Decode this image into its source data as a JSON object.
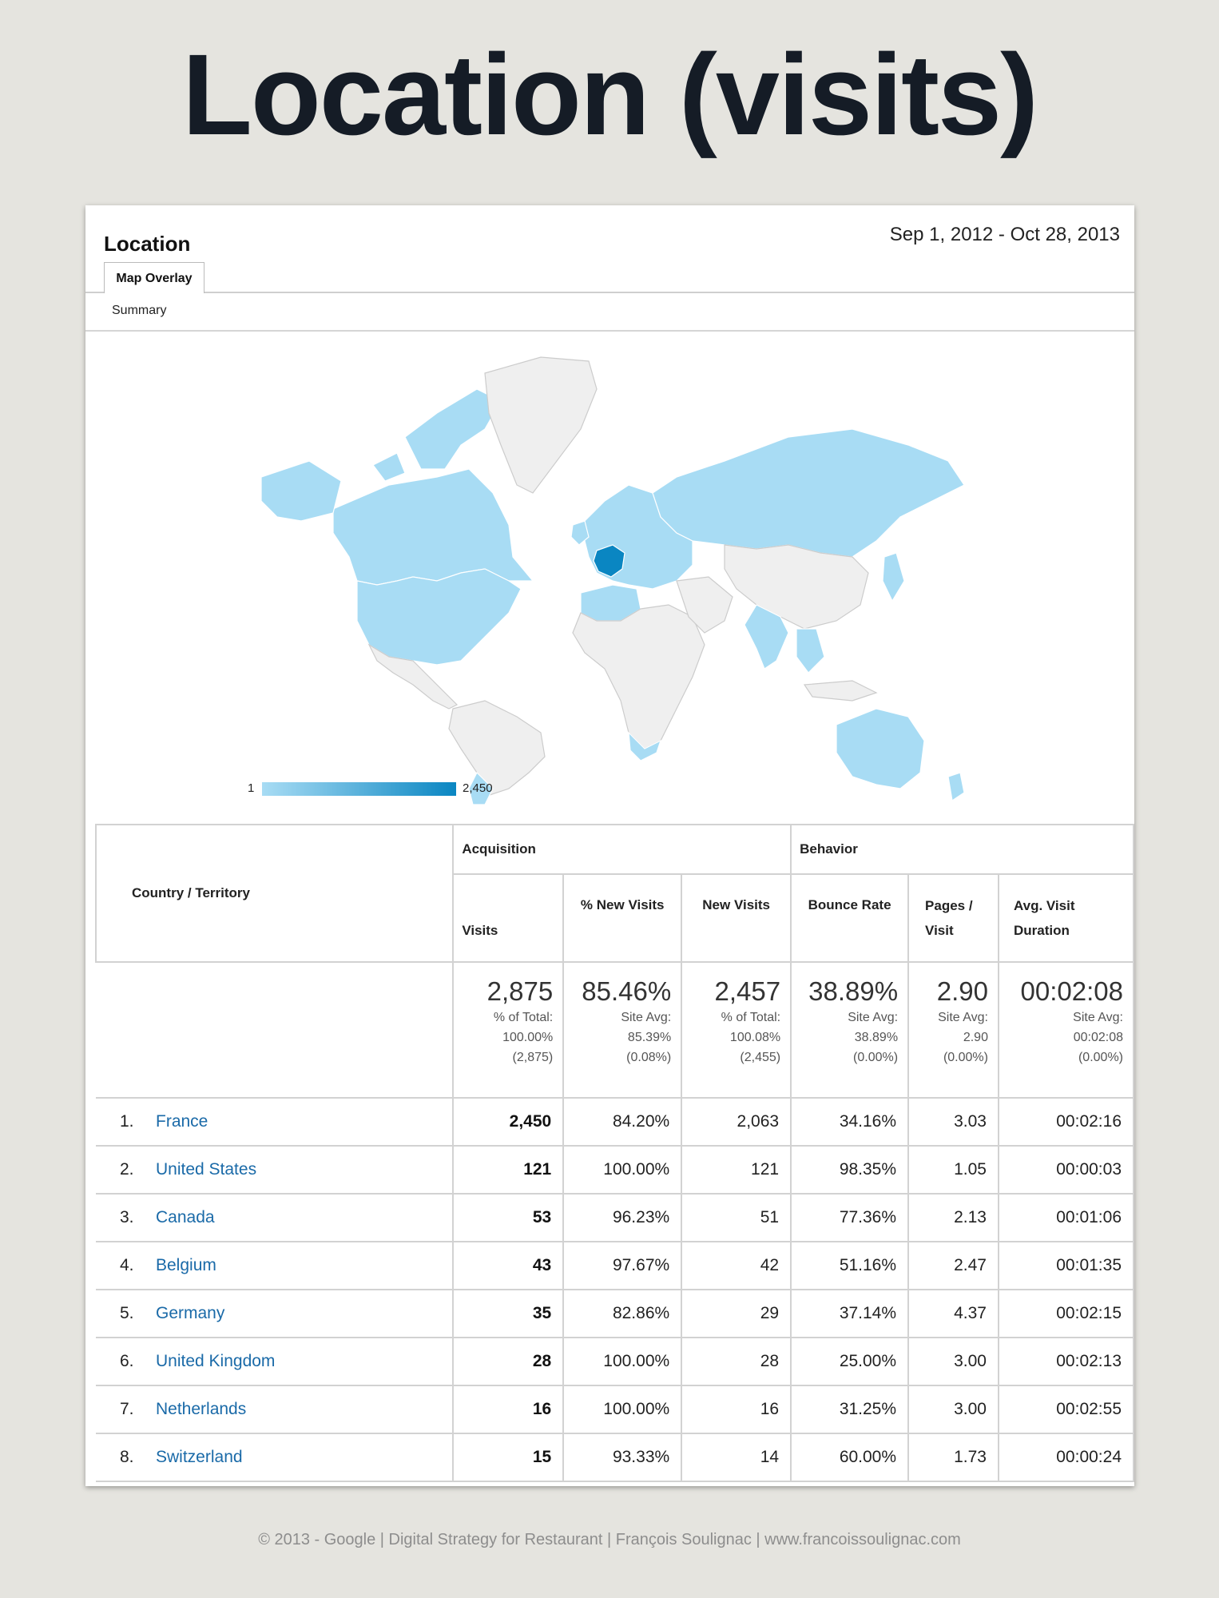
{
  "slide_title": "Location (visits)",
  "panel": {
    "title": "Location",
    "date_range": "Sep 1, 2012 - Oct 28, 2013",
    "tabs": [
      "Map Overlay"
    ],
    "summary_link": "Summary"
  },
  "map": {
    "legend_min": "1",
    "legend_max": "2,450",
    "colors": {
      "highlight": "#0a86c2",
      "visited": "#a8dcf4",
      "none": "#efefef",
      "border": "#ffffff"
    }
  },
  "table": {
    "country_header": "Country / Territory",
    "groups": {
      "acquisition": "Acquisition",
      "behavior": "Behavior"
    },
    "columns": [
      "Visits",
      "% New Visits",
      "New Visits",
      "Bounce Rate",
      "Pages / Visit",
      "Avg. Visit Duration"
    ],
    "totals": [
      {
        "value": "2,875",
        "l1": "% of Total:",
        "l2": "100.00%",
        "l3": "(2,875)"
      },
      {
        "value": "85.46%",
        "l1": "Site Avg:",
        "l2": "85.39%",
        "l3": "(0.08%)"
      },
      {
        "value": "2,457",
        "l1": "% of Total:",
        "l2": "100.08%",
        "l3": "(2,455)"
      },
      {
        "value": "38.89%",
        "l1": "Site Avg:",
        "l2": "38.89%",
        "l3": "(0.00%)"
      },
      {
        "value": "2.90",
        "l1": "Site Avg:",
        "l2": "2.90",
        "l3": "(0.00%)"
      },
      {
        "value": "00:02:08",
        "l1": "Site Avg:",
        "l2": "00:02:08",
        "l3": "(0.00%)"
      }
    ],
    "rows": [
      {
        "idx": "1.",
        "country": "France",
        "visits": "2,450",
        "new_pct": "84.20%",
        "new": "2,063",
        "bounce": "34.16%",
        "pages": "3.03",
        "duration": "00:02:16"
      },
      {
        "idx": "2.",
        "country": "United States",
        "visits": "121",
        "new_pct": "100.00%",
        "new": "121",
        "bounce": "98.35%",
        "pages": "1.05",
        "duration": "00:00:03"
      },
      {
        "idx": "3.",
        "country": "Canada",
        "visits": "53",
        "new_pct": "96.23%",
        "new": "51",
        "bounce": "77.36%",
        "pages": "2.13",
        "duration": "00:01:06"
      },
      {
        "idx": "4.",
        "country": "Belgium",
        "visits": "43",
        "new_pct": "97.67%",
        "new": "42",
        "bounce": "51.16%",
        "pages": "2.47",
        "duration": "00:01:35"
      },
      {
        "idx": "5.",
        "country": "Germany",
        "visits": "35",
        "new_pct": "82.86%",
        "new": "29",
        "bounce": "37.14%",
        "pages": "4.37",
        "duration": "00:02:15"
      },
      {
        "idx": "6.",
        "country": "United Kingdom",
        "visits": "28",
        "new_pct": "100.00%",
        "new": "28",
        "bounce": "25.00%",
        "pages": "3.00",
        "duration": "00:02:13"
      },
      {
        "idx": "7.",
        "country": "Netherlands",
        "visits": "16",
        "new_pct": "100.00%",
        "new": "16",
        "bounce": "31.25%",
        "pages": "3.00",
        "duration": "00:02:55"
      },
      {
        "idx": "8.",
        "country": "Switzerland",
        "visits": "15",
        "new_pct": "93.33%",
        "new": "14",
        "bounce": "60.00%",
        "pages": "1.73",
        "duration": "00:00:24"
      }
    ]
  },
  "footer": "© 2013 - Google | Digital Strategy for Restaurant | François Soulignac | www.francoissoulignac.com"
}
